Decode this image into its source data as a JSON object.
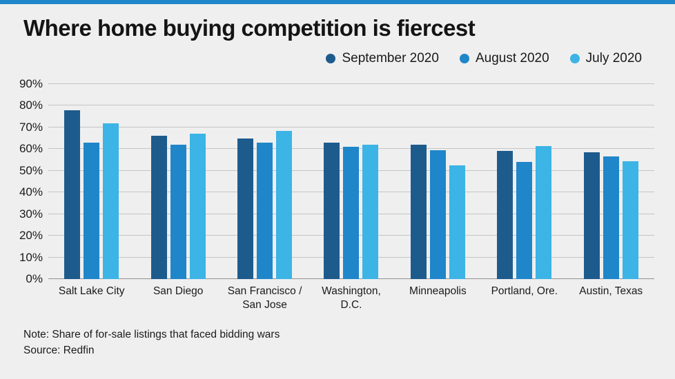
{
  "accent_color": "#1e86c9",
  "title": "Where home buying competition is fiercest",
  "note": "Note: Share of for-sale listings that faced bidding wars",
  "source": "Source: Redfin",
  "colors": {
    "september": "#1e5b8d",
    "august": "#1f86c9",
    "july": "#3cb4e5",
    "gridline": "#c4c4c4",
    "background": "#efefef"
  },
  "chart_data": {
    "type": "bar",
    "title": "Where home buying competition is fiercest",
    "categories": [
      "Salt Lake City",
      "San Diego",
      "San Francisco / San Jose",
      "Washington, D.C.",
      "Minneapolis",
      "Portland, Ore.",
      "Austin, Texas"
    ],
    "series": [
      {
        "name": "September 2020",
        "color": "#1e5b8d",
        "values": [
          78,
          66,
          65,
          63,
          62,
          59,
          58.5
        ]
      },
      {
        "name": "August 2020",
        "color": "#1f86c9",
        "values": [
          63,
          62,
          63,
          61,
          59.5,
          54,
          56.5
        ]
      },
      {
        "name": "July 2020",
        "color": "#3cb4e5",
        "values": [
          72,
          67,
          68.5,
          62,
          52.5,
          61.5,
          54.5
        ]
      }
    ],
    "xlabel": "",
    "ylabel": "",
    "ylim": [
      0,
      90
    ],
    "ytick_step": 10,
    "yticks": [
      "0%",
      "10%",
      "20%",
      "30%",
      "40%",
      "50%",
      "60%",
      "70%",
      "80%",
      "90%"
    ],
    "grid": true,
    "legend_position": "top-right",
    "note": "Note: Share of for-sale listings that faced bidding wars",
    "source": "Source: Redfin"
  }
}
